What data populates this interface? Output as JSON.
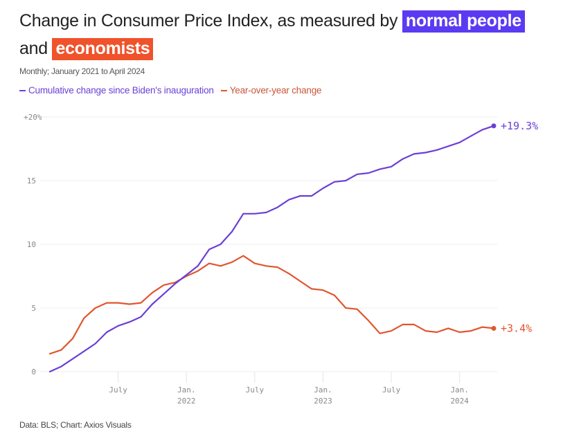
{
  "header": {
    "title_prefix": "Change in Consumer Price Index, as measured by",
    "highlight_1": "normal people",
    "title_mid": "and",
    "highlight_2": "economists",
    "subtitle": "Monthly; January 2021 to April 2024"
  },
  "footer": {
    "source": "Data: BLS; Chart: Axios Visuals"
  },
  "colors": {
    "cumulative": "#6a3fd6",
    "yoy": "#e0562e",
    "highlight_purple": "#5b3bf2",
    "highlight_orange": "#f0522b"
  },
  "chart_data": {
    "type": "line",
    "title": "Change in Consumer Price Index, as measured by normal people and economists",
    "subtitle": "Monthly; January 2021 to April 2024",
    "xlabel": "",
    "ylabel": "",
    "ylim": [
      0,
      20
    ],
    "grid": true,
    "legend_position": "top-left",
    "y_ticks": [
      {
        "value": 0,
        "label": "0"
      },
      {
        "value": 5,
        "label": "5"
      },
      {
        "value": 10,
        "label": "10"
      },
      {
        "value": 15,
        "label": "15"
      },
      {
        "value": 20,
        "label": "+20%"
      }
    ],
    "x_ticks": [
      {
        "index": 6,
        "label": "July",
        "sublabel": ""
      },
      {
        "index": 12,
        "label": "Jan.",
        "sublabel": "2022"
      },
      {
        "index": 18,
        "label": "July",
        "sublabel": ""
      },
      {
        "index": 24,
        "label": "Jan.",
        "sublabel": "2023"
      },
      {
        "index": 30,
        "label": "July",
        "sublabel": ""
      },
      {
        "index": 36,
        "label": "Jan.",
        "sublabel": "2024"
      }
    ],
    "x": [
      "2021-01",
      "2021-02",
      "2021-03",
      "2021-04",
      "2021-05",
      "2021-06",
      "2021-07",
      "2021-08",
      "2021-09",
      "2021-10",
      "2021-11",
      "2021-12",
      "2022-01",
      "2022-02",
      "2022-03",
      "2022-04",
      "2022-05",
      "2022-06",
      "2022-07",
      "2022-08",
      "2022-09",
      "2022-10",
      "2022-11",
      "2022-12",
      "2023-01",
      "2023-02",
      "2023-03",
      "2023-04",
      "2023-05",
      "2023-06",
      "2023-07",
      "2023-08",
      "2023-09",
      "2023-10",
      "2023-11",
      "2023-12",
      "2024-01",
      "2024-02",
      "2024-03",
      "2024-04"
    ],
    "series": [
      {
        "name": "Cumulative change since Biden's inauguration",
        "color": "#6a3fd6",
        "end_label": "+19.3%",
        "values": [
          0,
          0.4,
          1.0,
          1.6,
          2.2,
          3.1,
          3.6,
          3.9,
          4.3,
          5.3,
          6.1,
          6.9,
          7.6,
          8.3,
          9.6,
          10.0,
          11.0,
          12.4,
          12.4,
          12.5,
          12.9,
          13.5,
          13.8,
          13.8,
          14.4,
          14.9,
          15.0,
          15.5,
          15.6,
          15.9,
          16.1,
          16.7,
          17.1,
          17.2,
          17.4,
          17.7,
          18.0,
          18.5,
          19.0,
          19.3
        ]
      },
      {
        "name": "Year-over-year change",
        "color": "#e0562e",
        "end_label": "+3.4%",
        "values": [
          1.4,
          1.7,
          2.6,
          4.2,
          5.0,
          5.4,
          5.4,
          5.3,
          5.4,
          6.2,
          6.8,
          7.0,
          7.5,
          7.9,
          8.5,
          8.3,
          8.6,
          9.1,
          8.5,
          8.3,
          8.2,
          7.7,
          7.1,
          6.5,
          6.4,
          6.0,
          5.0,
          4.9,
          4.0,
          3.0,
          3.2,
          3.7,
          3.7,
          3.2,
          3.1,
          3.4,
          3.1,
          3.2,
          3.5,
          3.4
        ]
      }
    ]
  }
}
